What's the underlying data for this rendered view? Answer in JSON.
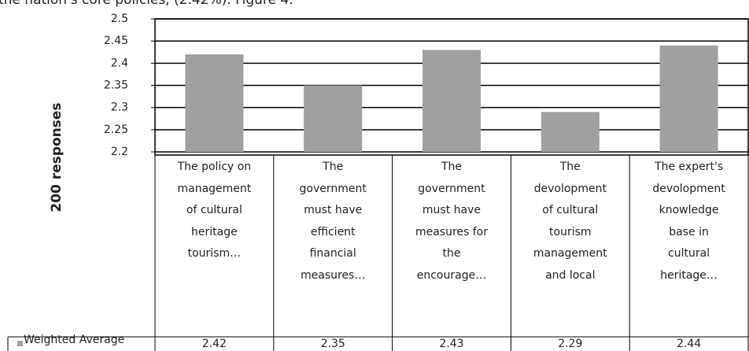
{
  "caption": "the nation's core policies, (2.42%). Figure 4.",
  "chart_data": {
    "type": "bar",
    "ylabel": "200 responses",
    "categories": [
      "The policy on management of cultural heritage tourism…",
      "The government must have efficient financial measures…",
      "The government must have measures for the encourage…",
      "The devolopment of cultural tourism management and local",
      "The expert's devolopment knowledge base in cultural heritage…"
    ],
    "series": [
      {
        "name": "Weighted Average",
        "color": "#a0a0a0",
        "values": [
          2.42,
          2.35,
          2.43,
          2.29,
          2.44
        ]
      }
    ],
    "ylim": [
      2.2,
      2.5
    ],
    "yticks": [
      2.2,
      2.25,
      2.3,
      2.35,
      2.4,
      2.45,
      2.5
    ],
    "grid": true,
    "data_table": true
  }
}
